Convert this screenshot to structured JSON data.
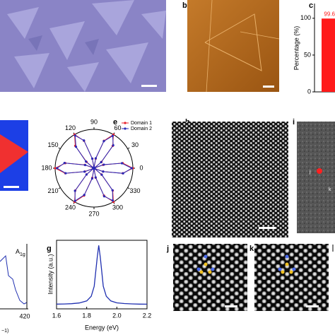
{
  "panel_labels": {
    "b": "b",
    "c": "c",
    "e": "e",
    "h": "h",
    "i": "i",
    "g": "g",
    "j": "j",
    "k": "k"
  },
  "image_annotations": {
    "j": "j",
    "k": "k"
  },
  "raman_fragment": {
    "peak_main": "A",
    "peak_sub": "1g",
    "tick": "420",
    "axis_fragment": "−1)"
  },
  "chart_data": [
    {
      "type": "bar",
      "ylabel": "Percentage (%)",
      "categories": [
        null
      ],
      "values": [
        99.6
      ],
      "value_labels": [
        "99.6"
      ],
      "color": "#ff1a1a",
      "ylim": [
        0,
        120
      ],
      "yticks": [
        0,
        50,
        100
      ]
    },
    {
      "type": "polar",
      "angle_ticks": [
        0,
        30,
        60,
        90,
        120,
        150,
        180,
        210,
        240,
        270,
        300,
        330
      ],
      "angles": [
        0,
        10,
        20,
        30,
        40,
        50,
        60,
        70,
        80,
        90,
        100,
        110,
        120,
        130,
        140,
        150,
        160,
        170,
        180,
        190,
        200,
        210,
        220,
        230,
        240,
        250,
        260,
        270,
        280,
        290,
        300,
        310,
        320,
        330,
        340,
        350
      ],
      "rlim": [
        0,
        1
      ],
      "series": [
        {
          "name": "Domain 1",
          "color": "#e8202a",
          "values": [
            1,
            0.75,
            0.25,
            0,
            0.25,
            0.75,
            1,
            0.75,
            0.25,
            0,
            0.25,
            0.75,
            1,
            0.75,
            0.25,
            0,
            0.25,
            0.75,
            1,
            0.75,
            0.25,
            0,
            0.25,
            0.75,
            1,
            0.75,
            0.25,
            0,
            0.25,
            0.75,
            1,
            0.75,
            0.25,
            0,
            0.25,
            0.75
          ]
        },
        {
          "name": "Domain 2",
          "color": "#2a2ab8",
          "values": [
            0.97,
            0.73,
            0.27,
            0.02,
            0.24,
            0.77,
            0.96,
            0.74,
            0.26,
            0.02,
            0.25,
            0.76,
            0.97,
            0.72,
            0.27,
            0.03,
            0.24,
            0.77,
            0.95,
            0.74,
            0.26,
            0.02,
            0.25,
            0.76,
            0.97,
            0.73,
            0.27,
            0.02,
            0.24,
            0.77,
            0.96,
            0.74,
            0.26,
            0.02,
            0.25,
            0.76
          ]
        }
      ]
    },
    {
      "type": "line",
      "xlabel": "Energy (eV)",
      "ylabel": "Intensity (a.u.)",
      "xlim": [
        1.6,
        2.2
      ],
      "xticks": [
        1.6,
        1.8,
        {
          "value": 2.0,
          "label": "2.0"
        },
        2.2
      ],
      "ylim": [
        0,
        1.08
      ],
      "color": "#1f2fb0",
      "x": [
        1.6,
        1.65,
        1.7,
        1.75,
        1.8,
        1.83,
        1.85,
        1.87,
        1.88,
        1.89,
        1.91,
        1.93,
        1.96,
        2.0,
        2.05,
        2.1,
        2.15,
        2.2
      ],
      "values": [
        0.075,
        0.077,
        0.081,
        0.092,
        0.125,
        0.198,
        0.356,
        0.814,
        1.0,
        0.814,
        0.356,
        0.198,
        0.125,
        0.095,
        0.083,
        0.078,
        0.075,
        0.074
      ]
    }
  ]
}
